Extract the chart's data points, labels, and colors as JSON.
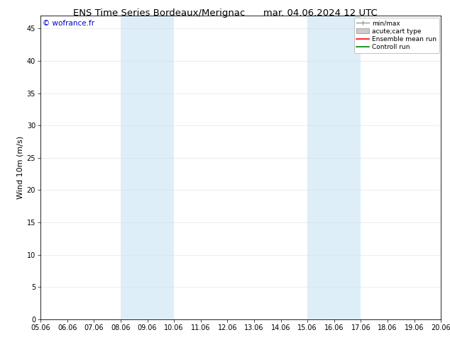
{
  "title_left": "ENS Time Series Bordeaux/Merignac",
  "title_right": "mar. 04.06.2024 12 UTC",
  "ylabel": "Wind 10m (m/s)",
  "watermark": "© wofrance.fr",
  "ylim": [
    0,
    47
  ],
  "yticks": [
    0,
    5,
    10,
    15,
    20,
    25,
    30,
    35,
    40,
    45
  ],
  "xtick_labels": [
    "05.06",
    "06.06",
    "07.06",
    "08.06",
    "09.06",
    "10.06",
    "11.06",
    "12.06",
    "13.06",
    "14.06",
    "15.06",
    "16.06",
    "17.06",
    "18.06",
    "19.06",
    "20.06"
  ],
  "x_values": [
    0,
    1,
    2,
    3,
    4,
    5,
    6,
    7,
    8,
    9,
    10,
    11,
    12,
    13,
    14,
    15
  ],
  "shaded_regions": [
    {
      "xstart": 3,
      "xend": 5,
      "color": "#ddeef8"
    },
    {
      "xstart": 10,
      "xend": 12,
      "color": "#ddeef8"
    }
  ],
  "legend_entries": [
    {
      "label": "min/max",
      "color": "#999999",
      "style": "errorbar"
    },
    {
      "label": "acute;cart type",
      "color": "#cccccc",
      "style": "box"
    },
    {
      "label": "Ensemble mean run",
      "color": "#ff0000",
      "style": "line"
    },
    {
      "label": "Controll run",
      "color": "#008000",
      "style": "line"
    }
  ],
  "background_color": "#ffffff",
  "plot_bg_color": "#ffffff",
  "spine_color": "#000000",
  "grid_color": "#dddddd",
  "title_fontsize": 9.5,
  "tick_fontsize": 7,
  "ylabel_fontsize": 8,
  "legend_fontsize": 6.5,
  "watermark_color": "#0000cc",
  "watermark_fontsize": 7.5
}
